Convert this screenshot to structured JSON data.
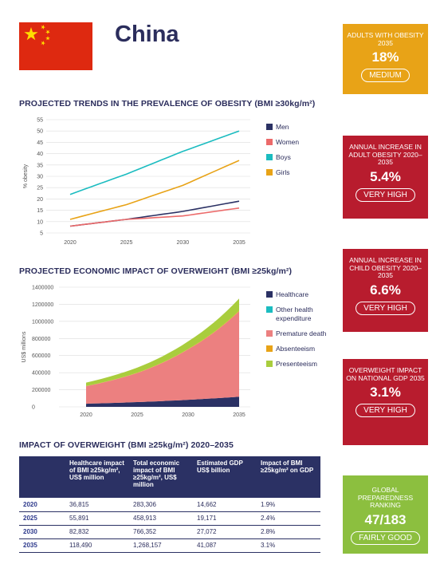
{
  "header": {
    "country": "China",
    "flag_colors": {
      "field": "#de2910",
      "stars": "#ffde00"
    }
  },
  "kpis": [
    {
      "label": "ADULTS WITH OBESITY 2035",
      "value": "18%",
      "rating": "MEDIUM",
      "color": "#e8a317"
    },
    {
      "label": "ANNUAL INCREASE IN ADULT OBESITY 2020–2035",
      "value": "5.4%",
      "rating": "VERY HIGH",
      "color": "#b81c2e"
    },
    {
      "label": "ANNUAL INCREASE IN CHILD OBESITY 2020–2035",
      "value": "6.6%",
      "rating": "VERY HIGH",
      "color": "#b81c2e"
    },
    {
      "label": "OVERWEIGHT IMPACT ON NATIONAL GDP 2035",
      "value": "3.1%",
      "rating": "VERY HIGH",
      "color": "#b81c2e"
    },
    {
      "label": "GLOBAL PREPAREDNESS RANKING",
      "value": "47/183",
      "rating": "FAIRLY GOOD",
      "color": "#8cbf3f"
    }
  ],
  "section_titles": {
    "trends": "PROJECTED TRENDS IN THE PREVALENCE OF OBESITY (BMI ≥30kg/m²)",
    "economic": "PROJECTED ECONOMIC IMPACT OF OVERWEIGHT (BMI ≥25kg/m²)",
    "impact": "IMPACT OF OVERWEIGHT (BMI ≥25kg/m²) 2020–2035"
  },
  "chart_data": [
    {
      "type": "line",
      "title": "PROJECTED TRENDS IN THE PREVALENCE OF OBESITY (BMI ≥30kg/m²)",
      "xlabel": "",
      "ylabel": "% obesity",
      "x": [
        2020,
        2025,
        2030,
        2035
      ],
      "ylim": [
        5,
        55
      ],
      "yticks": [
        5,
        10,
        15,
        20,
        25,
        30,
        35,
        40,
        45,
        50,
        55
      ],
      "grid": true,
      "legend_position": "right",
      "series": [
        {
          "name": "Men",
          "color": "#2b3164",
          "values": [
            8,
            11,
            14.5,
            19
          ]
        },
        {
          "name": "Women",
          "color": "#ec6a6a",
          "values": [
            8,
            11,
            12.5,
            16
          ]
        },
        {
          "name": "Boys",
          "color": "#1bbcc0",
          "values": [
            22,
            31,
            41,
            50
          ]
        },
        {
          "name": "Girls",
          "color": "#e8a317",
          "values": [
            11,
            17.5,
            26,
            37
          ]
        }
      ]
    },
    {
      "type": "area",
      "title": "PROJECTED ECONOMIC IMPACT OF OVERWEIGHT (BMI ≥25kg/m²)",
      "xlabel": "",
      "ylabel": "US$ millions",
      "x": [
        2020,
        2025,
        2030,
        2035
      ],
      "ylim": [
        0,
        1400000
      ],
      "yticks": [
        0,
        200000,
        400000,
        600000,
        800000,
        1000000,
        1200000,
        1400000
      ],
      "ytick_labels": [
        "0",
        "200000",
        "400000",
        "600000",
        "800000",
        "1000000",
        "1200000",
        "1400000"
      ],
      "grid": true,
      "stacked": true,
      "legend_position": "right",
      "series": [
        {
          "name": "Healthcare",
          "color": "#2b3164",
          "values": [
            36815,
            55891,
            82832,
            118490
          ]
        },
        {
          "name": "Other health expenditure",
          "color": "#1bbcc0",
          "values": [
            0,
            0,
            0,
            0
          ]
        },
        {
          "name": "Premature death",
          "color": "#ec8080",
          "values": [
            205000,
            340000,
            590000,
            1000000
          ]
        },
        {
          "name": "Absenteeism",
          "color": "#e8a317",
          "values": [
            1500,
            2500,
            4000,
            6000
          ]
        },
        {
          "name": "Presenteeism",
          "color": "#a9cd3d",
          "values": [
            40000,
            60000,
            89000,
            143000
          ]
        }
      ]
    }
  ],
  "impact_table": {
    "headers": [
      "",
      "Healthcare impact of BMI ≥25kg/m², US$ million",
      "Total economic impact of BMI ≥25kg/m², US$ million",
      "Estimated GDP US$ billion",
      "Impact of BMI ≥25kg/m² on GDP"
    ],
    "rows": [
      [
        "2020",
        "36,815",
        "283,306",
        "14,662",
        "1.9%"
      ],
      [
        "2025",
        "55,891",
        "458,913",
        "19,171",
        "2.4%"
      ],
      [
        "2030",
        "82,832",
        "766,352",
        "27,072",
        "2.8%"
      ],
      [
        "2035",
        "118,490",
        "1,268,157",
        "41,087",
        "3.1%"
      ]
    ]
  }
}
